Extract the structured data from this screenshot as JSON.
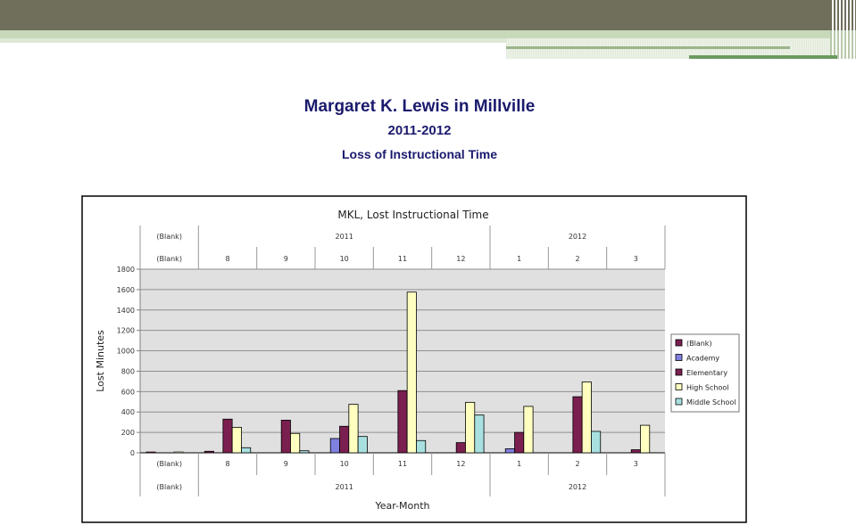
{
  "slide": {
    "title": "Margaret K. Lewis in Millville",
    "subtitle": "2011-2012",
    "heading": "Loss of Instructional Time"
  },
  "chart_data": {
    "type": "bar",
    "title": "MKL, Lost Instructional Time",
    "ylabel": "Lost Minutes",
    "xlabel": "Year-Month",
    "ylim": [
      0,
      1800
    ],
    "yticks": [
      0,
      200,
      400,
      600,
      800,
      1000,
      1200,
      1400,
      1600,
      1800
    ],
    "grid": true,
    "legend_position": "right",
    "year_groups": [
      {
        "label": "(Blank)",
        "span": 1
      },
      {
        "label": "2011",
        "span": 5
      },
      {
        "label": "2012",
        "span": 3
      }
    ],
    "categories": [
      "(Blank)",
      "8",
      "9",
      "10",
      "11",
      "12",
      "1",
      "2",
      "3"
    ],
    "series": [
      {
        "name": "(Blank)",
        "color": "#7a1f4f",
        "values": [
          0,
          15,
          0,
          0,
          0,
          0,
          0,
          0,
          0
        ]
      },
      {
        "name": "Academy",
        "color": "#8080e0",
        "values": [
          0,
          0,
          0,
          140,
          0,
          0,
          40,
          0,
          0
        ]
      },
      {
        "name": "Elementary",
        "color": "#7a1f4f",
        "values": [
          0,
          330,
          320,
          260,
          610,
          100,
          200,
          550,
          30
        ]
      },
      {
        "name": "High School",
        "color": "#ffffc0",
        "values": [
          0,
          250,
          190,
          475,
          1575,
          495,
          455,
          695,
          270
        ]
      },
      {
        "name": "Middle School",
        "color": "#a8e0e0",
        "values": [
          0,
          50,
          20,
          160,
          120,
          370,
          0,
          210,
          0
        ]
      }
    ]
  }
}
